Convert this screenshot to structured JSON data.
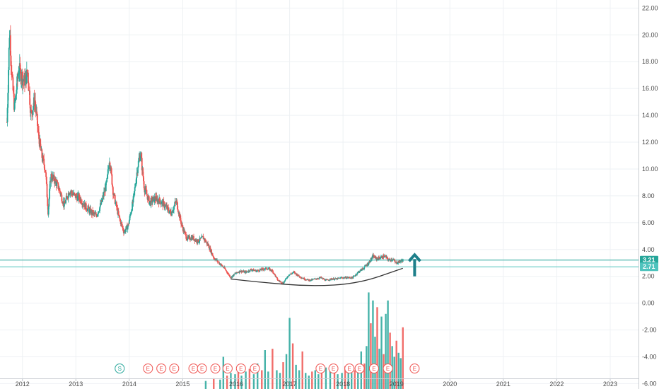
{
  "chart_data": {
    "type": "candlestick",
    "x_ticks": [
      "2012",
      "2013",
      "2014",
      "2015",
      "2016",
      "2017",
      "2018",
      "2019",
      "2020",
      "2021",
      "2022",
      "2023"
    ],
    "y_ticks": [
      "22.00",
      "20.00",
      "18.00",
      "16.00",
      "14.00",
      "12.00",
      "10.00",
      "8.00",
      "6.00",
      "4.00",
      "2.00",
      "0.00",
      "-2.00",
      "-4.00",
      "-6.00"
    ],
    "ylim": [
      -6.4,
      22.6
    ],
    "xlim": [
      2011.6,
      2023.55
    ],
    "grid": true,
    "colors": {
      "up": "#26a69a",
      "down": "#ef5350",
      "line": "#4fc3bd",
      "badge_split": "#26a69a",
      "badge_earnings": "#ef5350",
      "arrow": "#1e7f8a",
      "curve": "#333333"
    },
    "price_lines": [
      {
        "value": 3.21,
        "label": "3.21",
        "color": "#26a69a"
      },
      {
        "value": 2.71,
        "label": "2.71",
        "color": "#4fc3bd"
      }
    ],
    "price_path": [
      [
        2011.73,
        13.5
      ],
      [
        2011.78,
        20.5
      ],
      [
        2011.82,
        17.0
      ],
      [
        2011.87,
        14.5
      ],
      [
        2011.95,
        17.5
      ],
      [
        2012.05,
        16.5
      ],
      [
        2012.12,
        17.2
      ],
      [
        2012.18,
        14.0
      ],
      [
        2012.25,
        15.2
      ],
      [
        2012.32,
        12.5
      ],
      [
        2012.38,
        11.0
      ],
      [
        2012.45,
        10.0
      ],
      [
        2012.5,
        6.8
      ],
      [
        2012.55,
        9.5
      ],
      [
        2012.62,
        9.2
      ],
      [
        2012.7,
        8.6
      ],
      [
        2012.8,
        7.3
      ],
      [
        2012.9,
        8.4
      ],
      [
        2013.0,
        8.0
      ],
      [
        2013.1,
        7.8
      ],
      [
        2013.2,
        7.2
      ],
      [
        2013.3,
        6.8
      ],
      [
        2013.4,
        6.5
      ],
      [
        2013.5,
        7.5
      ],
      [
        2013.6,
        9.0
      ],
      [
        2013.65,
        10.8
      ],
      [
        2013.72,
        8.2
      ],
      [
        2013.82,
        6.5
      ],
      [
        2013.92,
        5.3
      ],
      [
        2014.0,
        5.8
      ],
      [
        2014.1,
        7.8
      ],
      [
        2014.18,
        10.3
      ],
      [
        2014.23,
        11.2
      ],
      [
        2014.3,
        8.6
      ],
      [
        2014.4,
        7.5
      ],
      [
        2014.5,
        7.8
      ],
      [
        2014.6,
        7.6
      ],
      [
        2014.7,
        7.2
      ],
      [
        2014.8,
        6.7
      ],
      [
        2014.9,
        7.6
      ],
      [
        2015.0,
        5.8
      ],
      [
        2015.1,
        4.8
      ],
      [
        2015.2,
        4.9
      ],
      [
        2015.3,
        4.6
      ],
      [
        2015.4,
        4.9
      ],
      [
        2015.5,
        4.3
      ],
      [
        2015.6,
        3.4
      ],
      [
        2015.7,
        3.0
      ],
      [
        2015.8,
        2.6
      ],
      [
        2015.92,
        1.9
      ],
      [
        2016.0,
        2.2
      ],
      [
        2016.1,
        2.4
      ],
      [
        2016.2,
        2.3
      ],
      [
        2016.3,
        2.5
      ],
      [
        2016.4,
        2.4
      ],
      [
        2016.5,
        2.5
      ],
      [
        2016.6,
        2.6
      ],
      [
        2016.7,
        2.4
      ],
      [
        2016.8,
        1.7
      ],
      [
        2016.9,
        1.5
      ],
      [
        2017.0,
        2.1
      ],
      [
        2017.1,
        2.3
      ],
      [
        2017.2,
        2.0
      ],
      [
        2017.3,
        1.8
      ],
      [
        2017.4,
        1.7
      ],
      [
        2017.5,
        1.8
      ],
      [
        2017.6,
        1.9
      ],
      [
        2017.7,
        1.7
      ],
      [
        2017.8,
        1.8
      ],
      [
        2017.9,
        1.8
      ],
      [
        2018.0,
        1.9
      ],
      [
        2018.1,
        1.9
      ],
      [
        2018.2,
        1.9
      ],
      [
        2018.3,
        2.3
      ],
      [
        2018.4,
        2.6
      ],
      [
        2018.5,
        3.0
      ],
      [
        2018.58,
        3.5
      ],
      [
        2018.65,
        3.3
      ],
      [
        2018.72,
        3.4
      ],
      [
        2018.8,
        3.5
      ],
      [
        2018.88,
        3.2
      ],
      [
        2018.95,
        3.3
      ],
      [
        2019.0,
        3.0
      ],
      [
        2019.08,
        3.1
      ],
      [
        2019.14,
        3.21
      ]
    ],
    "volume_bars": [
      [
        2015.45,
        -5.8
      ],
      [
        2015.6,
        -5.6
      ],
      [
        2015.72,
        -5.7
      ],
      [
        2015.78,
        -4.0
      ],
      [
        2015.85,
        -5.4
      ],
      [
        2015.92,
        -5.2
      ],
      [
        2016.0,
        -5.3
      ],
      [
        2016.06,
        -5.0
      ],
      [
        2016.12,
        -5.4
      ],
      [
        2016.2,
        -5.1
      ],
      [
        2016.27,
        -4.9
      ],
      [
        2016.35,
        -5.3
      ],
      [
        2016.42,
        -4.5
      ],
      [
        2016.5,
        -5.0
      ],
      [
        2016.56,
        -3.5
      ],
      [
        2016.62,
        -5.1
      ],
      [
        2016.7,
        -3.4
      ],
      [
        2016.78,
        -5.0
      ],
      [
        2016.84,
        -5.2
      ],
      [
        2016.9,
        -4.4
      ],
      [
        2016.96,
        -3.8
      ],
      [
        2017.02,
        -1.1
      ],
      [
        2017.08,
        -3.0
      ],
      [
        2017.14,
        -4.6
      ],
      [
        2017.2,
        -5.0
      ],
      [
        2017.26,
        -3.6
      ],
      [
        2017.32,
        -5.2
      ],
      [
        2017.38,
        -5.4
      ],
      [
        2017.44,
        -5.1
      ],
      [
        2017.5,
        -5.0
      ],
      [
        2017.56,
        -5.3
      ],
      [
        2017.62,
        -5.2
      ],
      [
        2017.7,
        -4.8
      ],
      [
        2017.78,
        -5.0
      ],
      [
        2017.86,
        -5.1
      ],
      [
        2017.92,
        -5.3
      ],
      [
        2018.0,
        -5.2
      ],
      [
        2018.06,
        -4.7
      ],
      [
        2018.12,
        -5.0
      ],
      [
        2018.18,
        -5.2
      ],
      [
        2018.24,
        -5.0
      ],
      [
        2018.3,
        -4.8
      ],
      [
        2018.36,
        -3.6
      ],
      [
        2018.42,
        -4.5
      ],
      [
        2018.46,
        -3.2
      ],
      [
        2018.5,
        0.8
      ],
      [
        2018.54,
        -1.5
      ],
      [
        2018.58,
        0.2
      ],
      [
        2018.62,
        -2.5
      ],
      [
        2018.66,
        -0.3
      ],
      [
        2018.7,
        -3.4
      ],
      [
        2018.74,
        -1.0
      ],
      [
        2018.78,
        -3.8
      ],
      [
        2018.82,
        -0.8
      ],
      [
        2018.86,
        0.2
      ],
      [
        2018.9,
        -2.2
      ],
      [
        2018.94,
        -3.2
      ],
      [
        2018.98,
        -4.0
      ],
      [
        2019.02,
        -2.8
      ],
      [
        2019.06,
        -3.7
      ],
      [
        2019.1,
        -4.1
      ],
      [
        2019.14,
        -1.8
      ]
    ],
    "badges": [
      {
        "x": 2013.84,
        "letter": "S",
        "kind": "split"
      },
      {
        "x": 2014.37,
        "letter": "E",
        "kind": "earnings"
      },
      {
        "x": 2014.62,
        "letter": "E",
        "kind": "earnings"
      },
      {
        "x": 2014.86,
        "letter": "E",
        "kind": "earnings"
      },
      {
        "x": 2015.22,
        "letter": "E",
        "kind": "earnings"
      },
      {
        "x": 2015.38,
        "letter": "E",
        "kind": "earnings"
      },
      {
        "x": 2015.63,
        "letter": "E",
        "kind": "earnings"
      },
      {
        "x": 2015.86,
        "letter": "E",
        "kind": "earnings"
      },
      {
        "x": 2016.11,
        "letter": "E",
        "kind": "earnings"
      },
      {
        "x": 2016.37,
        "letter": "E",
        "kind": "earnings"
      },
      {
        "x": 2017.6,
        "letter": "E",
        "kind": "earnings"
      },
      {
        "x": 2017.84,
        "letter": "E",
        "kind": "earnings"
      },
      {
        "x": 2018.14,
        "letter": "E",
        "kind": "earnings"
      },
      {
        "x": 2018.33,
        "letter": "E",
        "kind": "earnings"
      },
      {
        "x": 2018.6,
        "letter": "E",
        "kind": "earnings"
      },
      {
        "x": 2018.86,
        "letter": "E",
        "kind": "earnings"
      },
      {
        "x": 2019.36,
        "letter": "E",
        "kind": "earnings"
      }
    ],
    "rounding_bottom_curve": [
      [
        2015.92,
        1.8
      ],
      [
        2016.5,
        1.55
      ],
      [
        2017.4,
        1.25
      ],
      [
        2018.3,
        1.45
      ],
      [
        2019.14,
        2.6
      ]
    ],
    "arrow": {
      "x": 2019.36,
      "y_from": 2.0,
      "y_to": 3.5
    }
  }
}
